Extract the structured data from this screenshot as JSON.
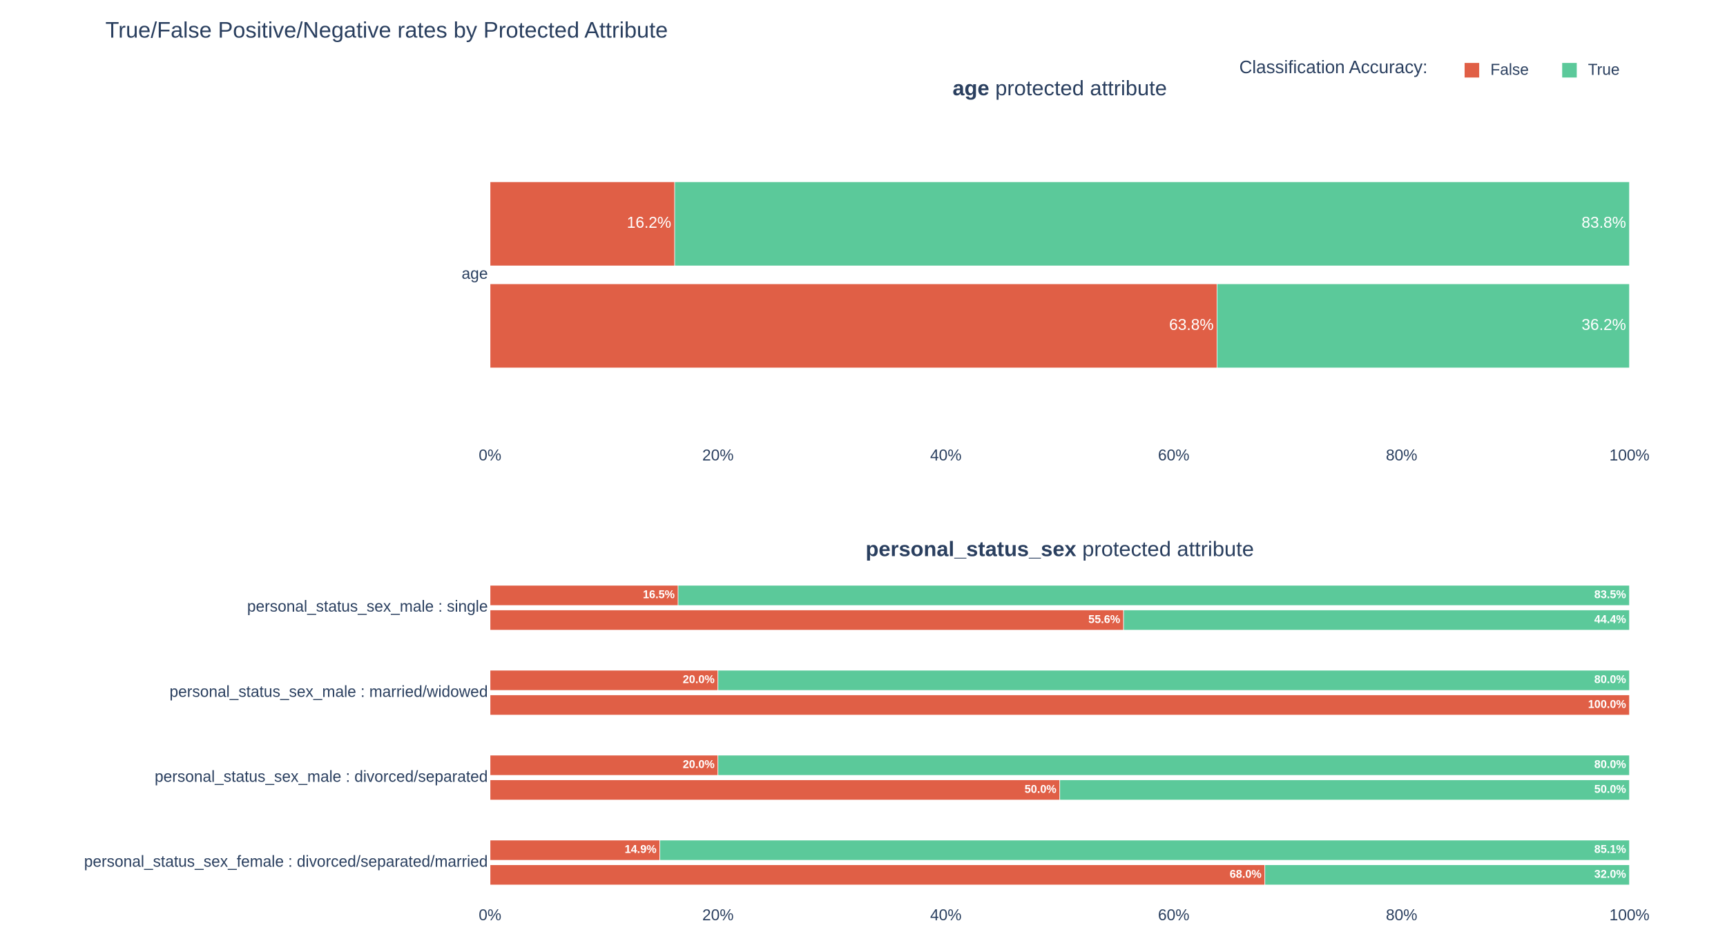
{
  "title": "True/False Positive/Negative rates by Protected Attribute",
  "legend": {
    "title": "Classification Accuracy:",
    "position": "top-right"
  },
  "chart_data": [
    {
      "type": "bar",
      "orientation": "h",
      "barmode": "stack",
      "title_bold": "age",
      "title": "protected attribute",
      "categories": [
        "age"
      ],
      "series": [
        {
          "name": "False",
          "color": "#e05f46",
          "values": [
            [
              16.2,
              63.8
            ]
          ],
          "value_labels": [
            [
              "16.2%",
              "63.8%"
            ]
          ]
        },
        {
          "name": "True",
          "color": "#5bc99a",
          "values": [
            [
              83.8,
              36.2
            ]
          ],
          "value_labels": [
            [
              "83.8%",
              "36.2%"
            ]
          ]
        }
      ],
      "xlim": [
        0,
        100
      ],
      "xticks": [
        {
          "value": 0,
          "label": "0%"
        },
        {
          "value": 20,
          "label": "20%"
        },
        {
          "value": 40,
          "label": "40%"
        },
        {
          "value": 60,
          "label": "60%"
        },
        {
          "value": 80,
          "label": "80%"
        },
        {
          "value": 100,
          "label": "100%"
        }
      ]
    },
    {
      "type": "bar",
      "orientation": "h",
      "barmode": "stack",
      "title_bold": "personal_status_sex",
      "title": "protected attribute",
      "categories": [
        "personal_status_sex_male : single",
        "personal_status_sex_male : married/widowed",
        "personal_status_sex_male : divorced/separated",
        "personal_status_sex_female : divorced/separated/married"
      ],
      "series": [
        {
          "name": "False",
          "color": "#e05f46",
          "values": [
            [
              16.5,
              55.6
            ],
            [
              20.0,
              100.0
            ],
            [
              20.0,
              50.0
            ],
            [
              14.9,
              68.0
            ]
          ],
          "value_labels": [
            [
              "16.5%",
              "55.6%"
            ],
            [
              "20.0%",
              "100.0%"
            ],
            [
              "20.0%",
              "50.0%"
            ],
            [
              "14.9%",
              "68.0%"
            ]
          ]
        },
        {
          "name": "True",
          "color": "#5bc99a",
          "values": [
            [
              83.5,
              44.4
            ],
            [
              80.0,
              0
            ],
            [
              80.0,
              50.0
            ],
            [
              85.1,
              32.0
            ]
          ],
          "value_labels": [
            [
              "83.5%",
              "44.4%"
            ],
            [
              "80.0%",
              null
            ],
            [
              "80.0%",
              "50.0%"
            ],
            [
              "85.1%",
              "32.0%"
            ]
          ]
        }
      ],
      "xlim": [
        0,
        100
      ],
      "xticks": [
        {
          "value": 0,
          "label": "0%"
        },
        {
          "value": 20,
          "label": "20%"
        },
        {
          "value": 40,
          "label": "40%"
        },
        {
          "value": 60,
          "label": "60%"
        },
        {
          "value": 80,
          "label": "80%"
        },
        {
          "value": 100,
          "label": "100%"
        }
      ]
    }
  ]
}
